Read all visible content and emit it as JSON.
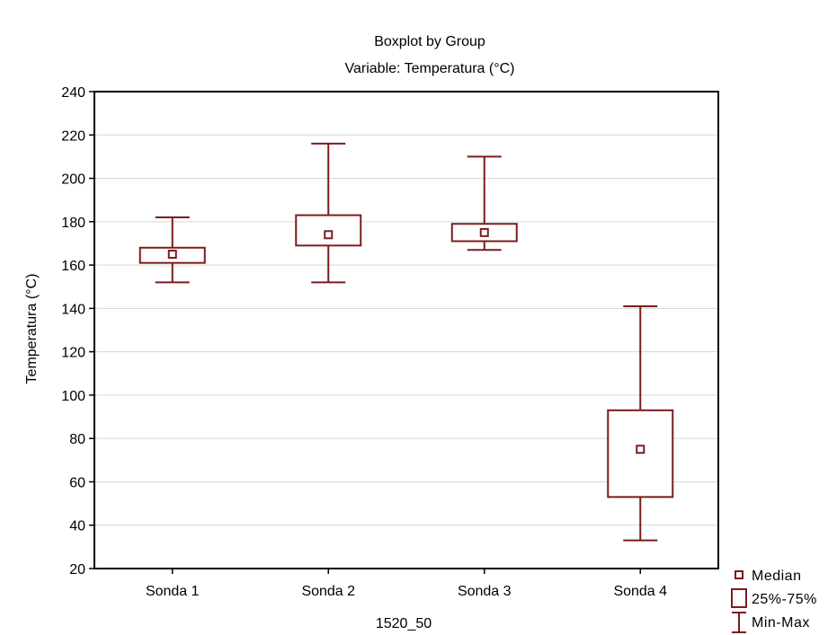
{
  "chart_data": {
    "type": "boxplot",
    "title": "Boxplot by Group",
    "subtitle": "Variable: Temperatura (°C)",
    "xlabel": "1520_50",
    "ylabel": "Temperatura (°C)",
    "ylim": [
      20,
      240
    ],
    "yticks": [
      20,
      40,
      60,
      80,
      100,
      120,
      140,
      160,
      180,
      200,
      220,
      240
    ],
    "grid": true,
    "legend_position": "bottom-right",
    "color": "#7b1c1c",
    "categories": [
      "Sonda 1",
      "Sonda 2",
      "Sonda 3",
      "Sonda 4"
    ],
    "boxes": [
      {
        "category": "Sonda 1",
        "min": 152,
        "q1": 161,
        "median": 165,
        "q3": 168,
        "max": 182
      },
      {
        "category": "Sonda 2",
        "min": 152,
        "q1": 169,
        "median": 174,
        "q3": 183,
        "max": 216
      },
      {
        "category": "Sonda 3",
        "min": 167,
        "q1": 171,
        "median": 175,
        "q3": 179,
        "max": 210
      },
      {
        "category": "Sonda 4",
        "min": 33,
        "q1": 53,
        "median": 75,
        "q3": 93,
        "max": 141
      }
    ],
    "legend": [
      {
        "symbol": "median-square",
        "label": "Median"
      },
      {
        "symbol": "box",
        "label": "25%-75%"
      },
      {
        "symbol": "whisker",
        "label": "Min-Max"
      }
    ]
  }
}
